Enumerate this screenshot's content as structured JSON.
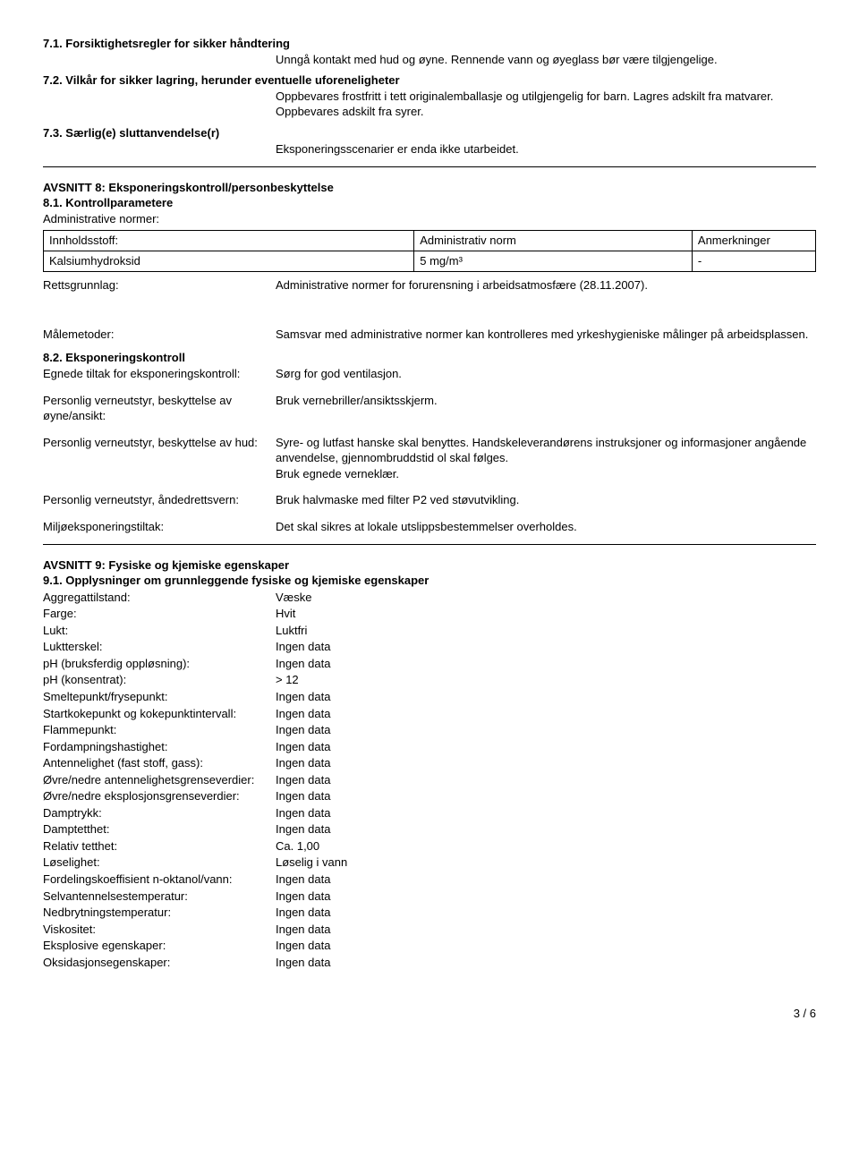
{
  "s71": {
    "heading": "7.1. Forsiktighetsregler for sikker håndtering",
    "text": "Unngå kontakt med hud og øyne. Rennende vann og øyeglass bør være tilgjengelige."
  },
  "s72": {
    "heading": "7.2. Vilkår for sikker lagring, herunder eventuelle uforeneligheter",
    "text": "Oppbevares frostfritt i tett originalemballasje og utilgjengelig for barn. Lagres adskilt fra matvarer. Oppbevares adskilt fra syrer."
  },
  "s73": {
    "heading": "7.3. Særlig(e) sluttanvendelse(r)",
    "text": "Eksponeringsscenarier er enda ikke utarbeidet."
  },
  "s8": {
    "title": "AVSNITT 8: Eksponeringskontroll/personbeskyttelse",
    "s81": "8.1. Kontrollparametere",
    "adminNormLabel": "Administrative normer:",
    "table": {
      "h1": "Innholdsstoff:",
      "h2": "Administrativ norm",
      "h3": "Anmerkninger",
      "r1c1": "Kalsiumhydroksid",
      "r1c2": "5 mg/m³",
      "r1c3": "-"
    },
    "retts_label": "Rettsgrunnlag:",
    "retts_value": "Administrative normer for forurensning i arbeidsatmosfære (28.11.2007).",
    "maal_label": "Målemetoder:",
    "maal_value": "Samsvar med administrative normer kan kontrolleres med yrkeshygieniske målinger på arbeidsplassen.",
    "s82": "8.2. Eksponeringskontroll",
    "rows": [
      {
        "label": "Egnede tiltak for eksponeringskontroll:",
        "value": "Sørg for god ventilasjon."
      },
      {
        "label": "Personlig verneutstyr, beskyttelse av øyne/ansikt:",
        "value": "Bruk vernebriller/ansiktsskjerm."
      },
      {
        "label": "Personlig verneutstyr, beskyttelse av hud:",
        "value": "Syre- og lutfast hanske skal benyttes. Handskeleverandørens instruksjoner og informasjoner angående anvendelse, gjennombruddstid ol skal følges.\nBruk egnede verneklær."
      },
      {
        "label": "Personlig verneutstyr, åndedrettsvern:",
        "value": "Bruk halvmaske med filter P2 ved støvutvikling."
      },
      {
        "label": "Miljøeksponeringstiltak:",
        "value": "Det skal sikres at lokale utslippsbestemmelser overholdes."
      }
    ]
  },
  "s9": {
    "title": "AVSNITT 9: Fysiske og kjemiske egenskaper",
    "s91": "9.1. Opplysninger om grunnleggende fysiske og kjemiske egenskaper",
    "props": [
      {
        "label": "Aggregattilstand:",
        "value": "Væske"
      },
      {
        "label": "Farge:",
        "value": "Hvit"
      },
      {
        "label": "Lukt:",
        "value": "Luktfri"
      },
      {
        "label": "Luktterskel:",
        "value": "Ingen data"
      },
      {
        "label": "pH (bruksferdig oppløsning):",
        "value": "Ingen data"
      },
      {
        "label": "pH (konsentrat):",
        "value": "> 12"
      },
      {
        "label": "Smeltepunkt/frysepunkt:",
        "value": "Ingen data"
      },
      {
        "label": "Startkokepunkt og kokepunktintervall:",
        "value": "Ingen data"
      },
      {
        "label": "Flammepunkt:",
        "value": "Ingen data"
      },
      {
        "label": "Fordampningshastighet:",
        "value": "Ingen data"
      },
      {
        "label": "Antennelighet (fast stoff, gass):",
        "value": "Ingen data"
      },
      {
        "label": "Øvre/nedre antennelighetsgrenseverdier:",
        "value": "Ingen data"
      },
      {
        "label": "Øvre/nedre eksplosjonsgrenseverdier:",
        "value": "Ingen data"
      },
      {
        "label": "Damptrykk:",
        "value": "Ingen data"
      },
      {
        "label": "Damptetthet:",
        "value": "Ingen data"
      },
      {
        "label": "Relativ tetthet:",
        "value": "Ca. 1,00"
      },
      {
        "label": "Løselighet:",
        "value": "Løselig i vann"
      },
      {
        "label": "Fordelingskoeffisient n-oktanol/vann:",
        "value": "Ingen data"
      },
      {
        "label": "Selvantennelsestemperatur:",
        "value": "Ingen data"
      },
      {
        "label": "Nedbrytningstemperatur:",
        "value": "Ingen data"
      },
      {
        "label": "Viskositet:",
        "value": "Ingen data"
      },
      {
        "label": "Eksplosive egenskaper:",
        "value": "Ingen data"
      },
      {
        "label": "Oksidasjonsegenskaper:",
        "value": "Ingen data"
      }
    ]
  },
  "pageNum": "3 / 6"
}
